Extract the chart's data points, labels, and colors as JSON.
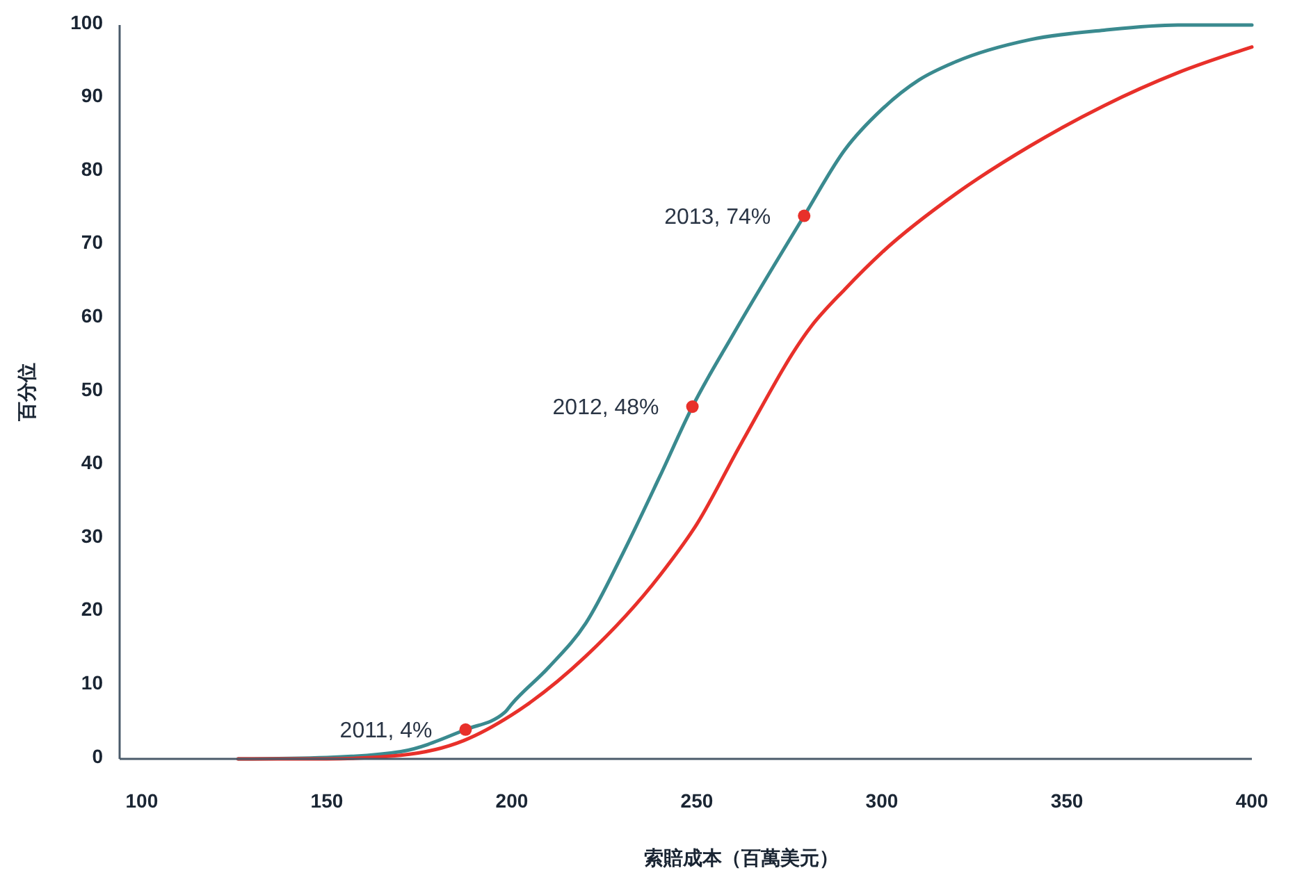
{
  "chart_data": {
    "type": "line",
    "xlabel": "索賠成本（百萬美元）",
    "ylabel": "百分位",
    "xlim": [
      94,
      400
    ],
    "ylim": [
      0,
      100
    ],
    "xticks": [
      100,
      150,
      200,
      250,
      300,
      350,
      400
    ],
    "yticks": [
      0,
      10,
      20,
      30,
      40,
      50,
      60,
      70,
      80,
      90,
      100
    ],
    "grid": false,
    "marker": "none",
    "line_style": "solid",
    "series": [
      {
        "color": "#3a8a8f",
        "x": [
          126,
          150,
          170,
          187.5,
          198,
          200,
          210,
          220,
          230,
          240,
          248.8,
          260,
          279,
          290,
          300,
          310,
          320,
          340,
          360,
          380,
          400
        ],
        "values": [
          0,
          0.2,
          1,
          4,
          6.3,
          7.5,
          12.5,
          18.5,
          28,
          38.5,
          48,
          58,
          74,
          83,
          88.5,
          92.5,
          95,
          98,
          99.3,
          100,
          100
        ]
      },
      {
        "color": "#e8302a",
        "x": [
          126,
          150,
          170,
          187,
          200,
          220,
          240,
          250,
          262,
          281,
          290,
          300,
          320,
          340,
          360,
          380,
          400
        ],
        "values": [
          0,
          0,
          0.5,
          2.5,
          6,
          14,
          25,
          32,
          43,
          59,
          64,
          69,
          77,
          83.5,
          89,
          93.5,
          97
        ]
      },
      {
        "type": "scatter",
        "marker": "circle",
        "color": "#e8302a",
        "x": [
          187.5,
          248.8,
          279
        ],
        "values": [
          4,
          48,
          74
        ]
      }
    ],
    "annotations": [
      {
        "text": "2011, 4%",
        "x": 187.5,
        "y": 4
      },
      {
        "text": "2012, 48%",
        "x": 248.8,
        "y": 48
      },
      {
        "text": "2013, 74%",
        "x": 279,
        "y": 74
      }
    ]
  }
}
